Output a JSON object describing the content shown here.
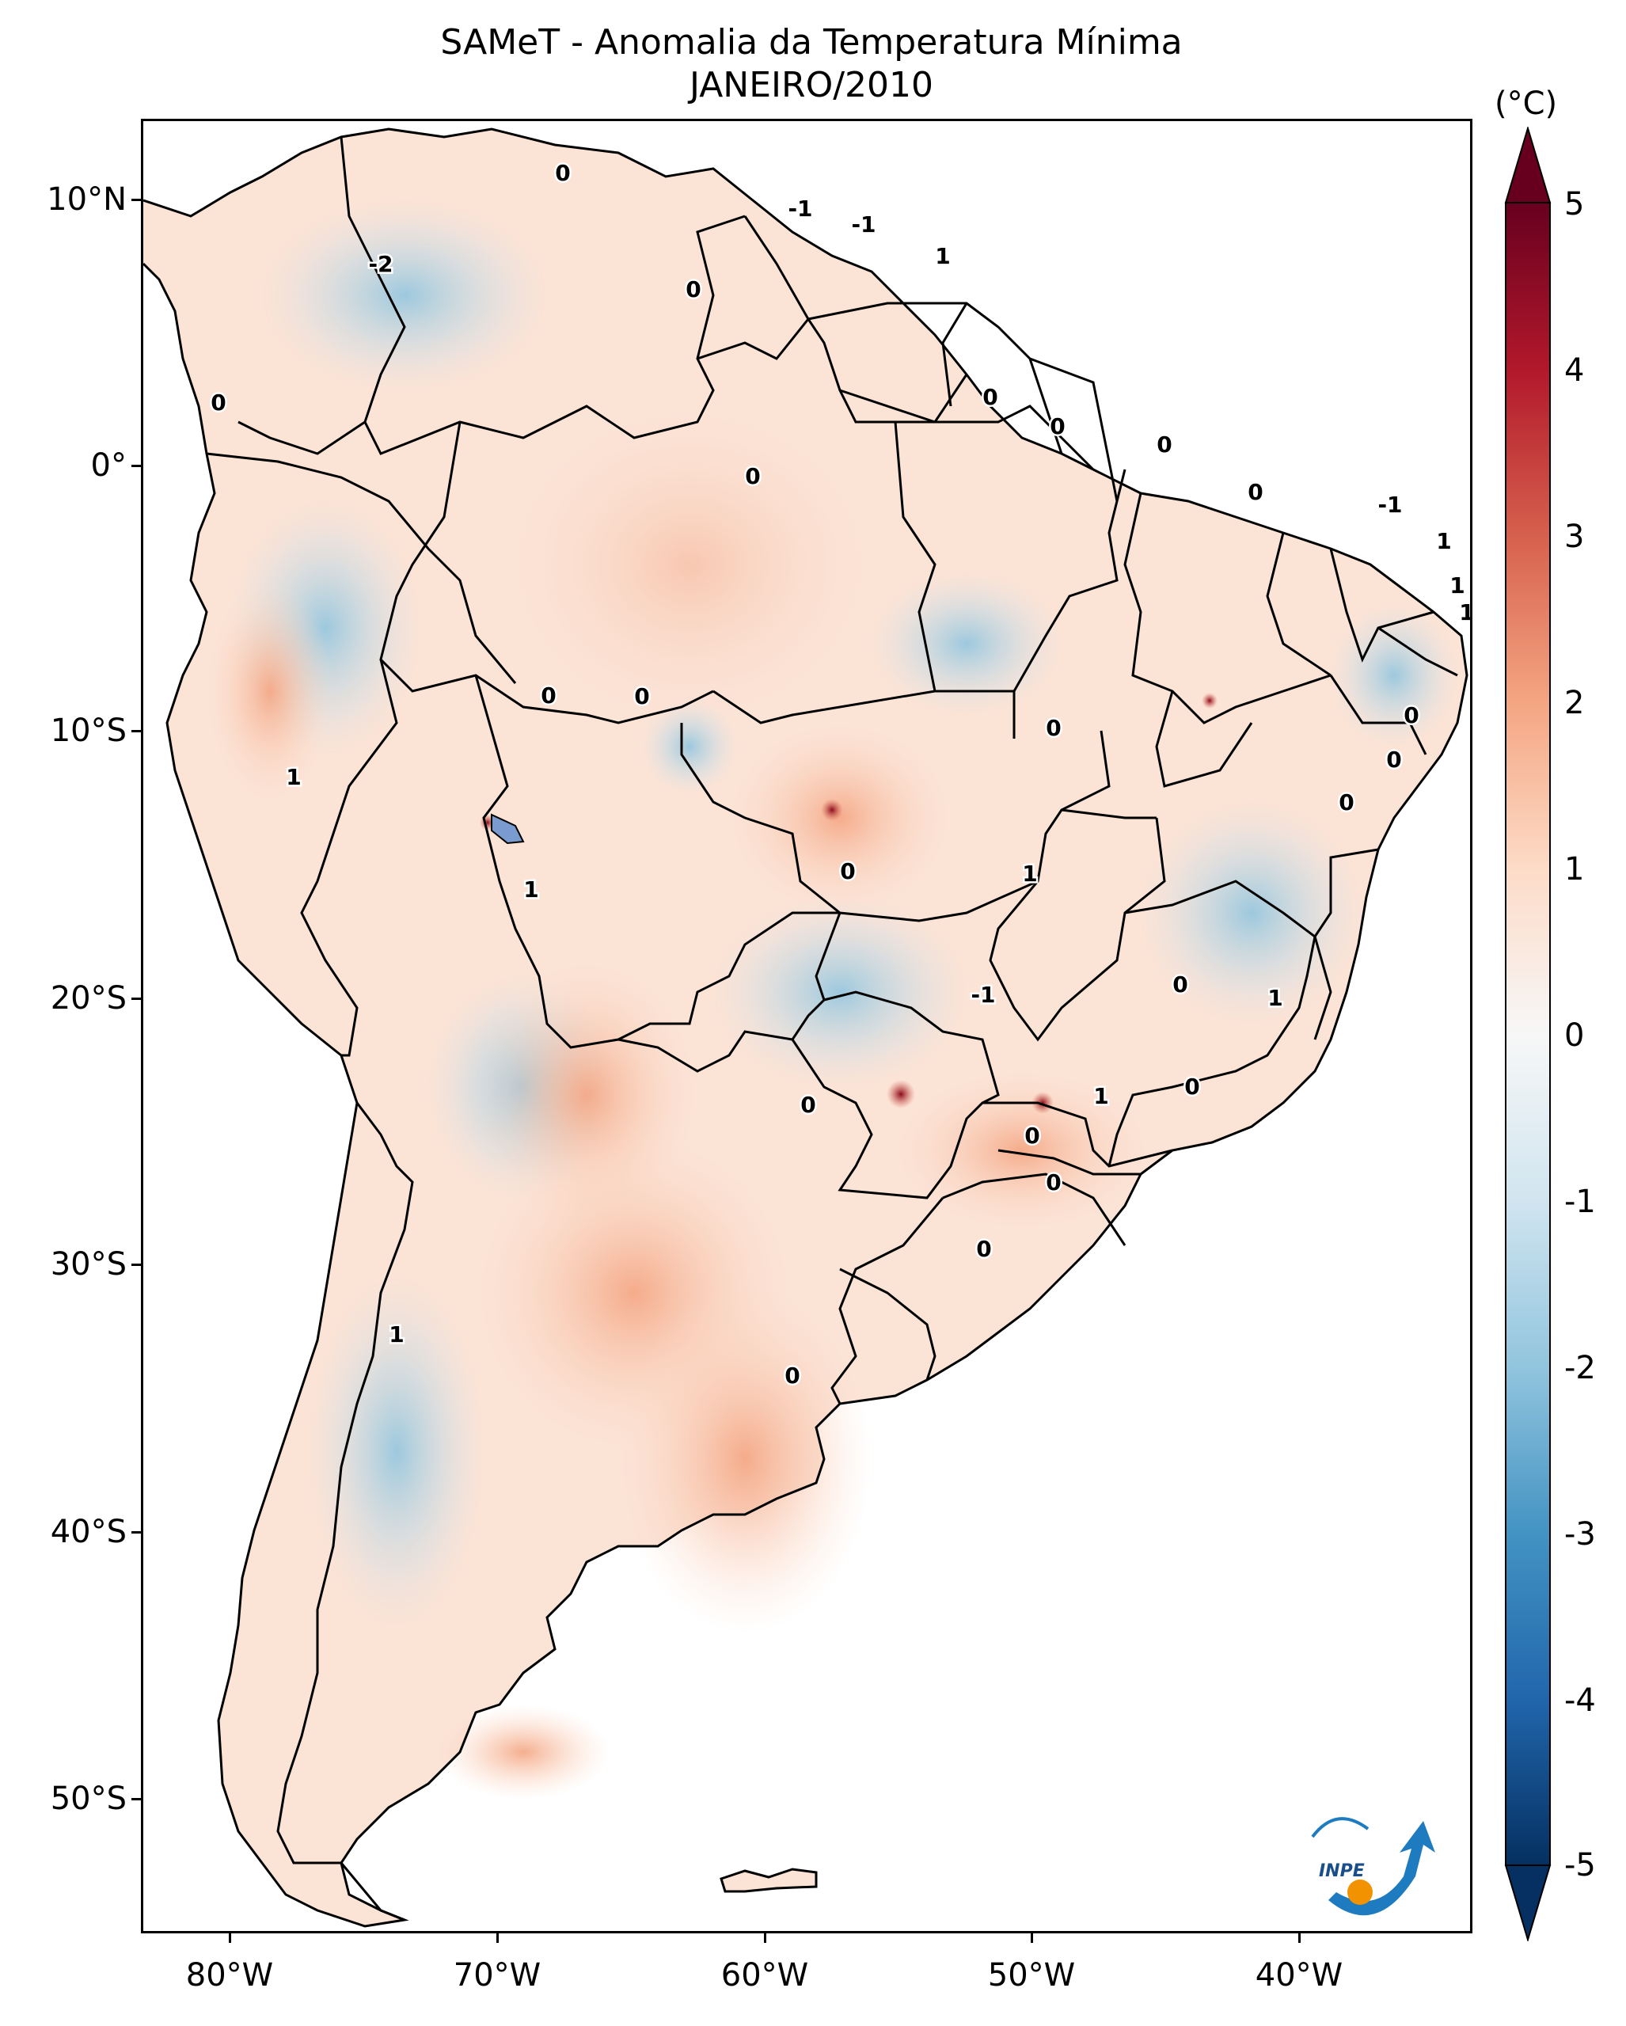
{
  "title": {
    "line1": "SAMeT - Anomalia da Temperatura Mínima",
    "line2": "JANEIRO/2010"
  },
  "axes": {
    "lat_ticks": [
      "10°N",
      "0°",
      "10°S",
      "20°S",
      "30°S",
      "40°S",
      "50°S"
    ],
    "lon_ticks": [
      "80°W",
      "70°W",
      "60°W",
      "50°W",
      "40°W"
    ]
  },
  "colorbar": {
    "unit": "(°C)",
    "ticks": [
      "5",
      "4",
      "3",
      "2",
      "1",
      "0",
      "-1",
      "-2",
      "-3",
      "-4",
      "-5"
    ],
    "colormap": "RdBu_r",
    "extend": "both",
    "colors": [
      "#053061",
      "#2166ac",
      "#4393c3",
      "#92c5de",
      "#d1e5f0",
      "#f7f7f7",
      "#fddbc7",
      "#f4a582",
      "#d6604d",
      "#b2182b",
      "#67001f"
    ]
  },
  "contour_labels": [
    "0",
    "-1",
    "-1",
    "1",
    "-2",
    "0",
    "0",
    "0",
    "0",
    "0",
    "0",
    "0",
    "-1",
    "1",
    "1",
    "1",
    "0",
    "0",
    "0",
    "0",
    "0",
    "1",
    "0",
    "1",
    "0",
    "1",
    "-1",
    "0",
    "1",
    "1",
    "0",
    "0",
    "0",
    "0",
    "0",
    "1",
    "0"
  ],
  "logo": {
    "text": "INPE"
  }
}
